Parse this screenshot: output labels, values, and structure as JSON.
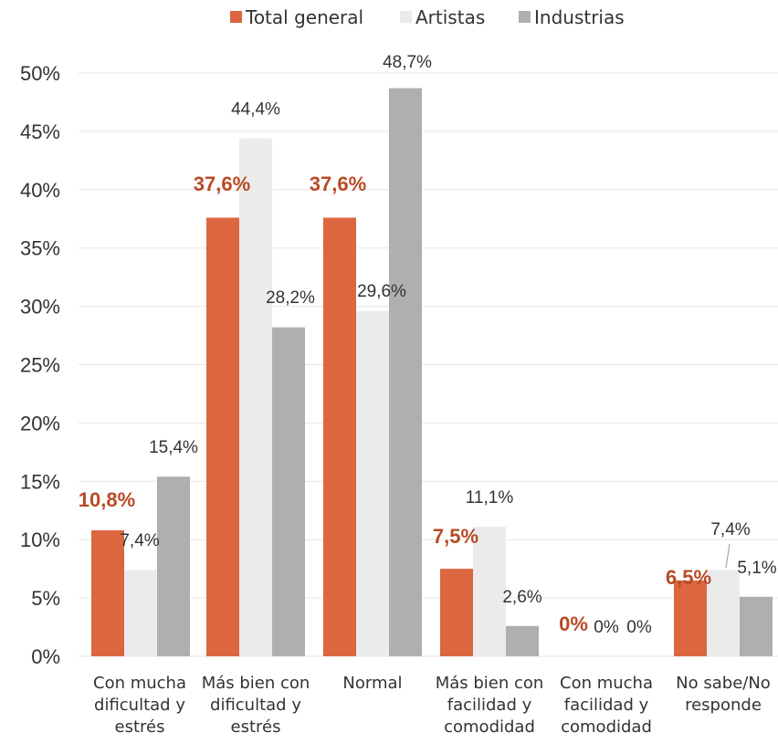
{
  "chart_data": {
    "type": "bar",
    "categories": [
      [
        "Con mucha",
        "dificultad y",
        "estrés"
      ],
      [
        "Más bien con",
        "dificultad y",
        "estrés"
      ],
      [
        "Normal"
      ],
      [
        "Más bien con",
        "facilidad y",
        "comodidad"
      ],
      [
        "Con mucha",
        "facilidad y",
        "comodidad"
      ],
      [
        "No sabe/No",
        "responde"
      ]
    ],
    "series": [
      {
        "name": "Total general",
        "color": "#DB6640",
        "values": [
          10.8,
          37.6,
          37.6,
          7.5,
          0,
          6.5
        ],
        "labels": [
          "10,8%",
          "37,6%",
          "37,6%",
          "7,5%",
          "0%",
          "6,5%"
        ]
      },
      {
        "name": "Artistas",
        "color": "#EBEBEB",
        "values": [
          7.4,
          44.4,
          29.6,
          11.1,
          0,
          7.4
        ],
        "labels": [
          "7,4%",
          "44,4%",
          "29,6%",
          "11,1%",
          "0%",
          "7,4%"
        ]
      },
      {
        "name": "Industrias",
        "color": "#AFAFAF",
        "values": [
          15.4,
          28.2,
          48.7,
          2.6,
          0,
          5.1
        ],
        "labels": [
          "15,4%",
          "28,2%",
          "48,7%",
          "2,6%",
          "0%",
          "5,1%"
        ]
      }
    ],
    "yticks": [
      "0%",
      "5%",
      "10%",
      "15%",
      "20%",
      "25%",
      "30%",
      "35%",
      "40%",
      "45%",
      "50%"
    ],
    "ylim": [
      0,
      50
    ],
    "grid": true,
    "legend": "top-center"
  }
}
